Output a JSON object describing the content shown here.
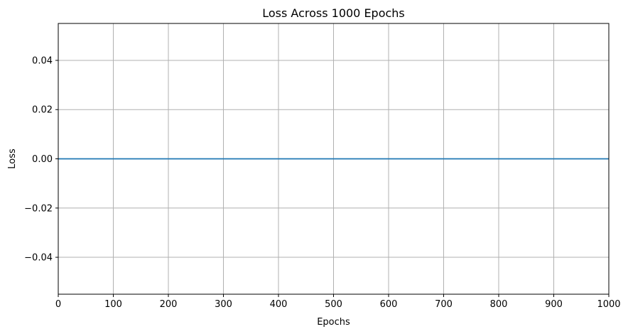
{
  "chart_data": {
    "type": "line",
    "title": "Loss Across 1000 Epochs",
    "xlabel": "Epochs",
    "ylabel": "Loss",
    "xlim": [
      0,
      1000
    ],
    "ylim": [
      -0.055,
      0.055
    ],
    "x_ticks": [
      0,
      100,
      200,
      300,
      400,
      500,
      600,
      700,
      800,
      900,
      1000
    ],
    "x_tick_labels": [
      "0",
      "100",
      "200",
      "300",
      "400",
      "500",
      "600",
      "700",
      "800",
      "900",
      "1000"
    ],
    "y_ticks": [
      -0.04,
      -0.02,
      0.0,
      0.02,
      0.04
    ],
    "y_tick_labels": [
      "−0.04",
      "−0.02",
      "0.00",
      "0.02",
      "0.04"
    ],
    "grid": true,
    "series": [
      {
        "color": "#1f77b4",
        "x": [
          0,
          1000
        ],
        "y": [
          0,
          0
        ]
      }
    ]
  }
}
